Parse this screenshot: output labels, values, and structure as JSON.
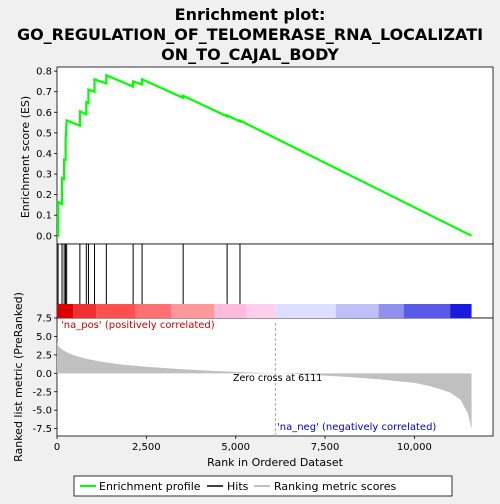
{
  "chart_data": {
    "type": "line",
    "title_line1": "Enrichment plot:",
    "title_line2": "GO_REGULATION_OF_TELOMERASE_RNA_LOCALIZATI",
    "title_line3": "ON_TO_CAJAL_BODY",
    "top_ylabel": "Enrichment score (ES)",
    "bottom_ylabel_line1": "Ranked list metric (PreRanked)",
    "xlabel": "Rank in Ordered Dataset",
    "top_yticks": [
      "0.0",
      "0.1",
      "0.2",
      "0.3",
      "0.4",
      "0.5",
      "0.6",
      "0.7",
      "0.8"
    ],
    "bottom_yticks": [
      "7.5",
      "5.0",
      "2.5",
      "0.0",
      "-2.5",
      "-5.0",
      "-7.5"
    ],
    "xticks": [
      "0",
      "2,500",
      "5,000",
      "7,500",
      "10,000"
    ],
    "xlim": [
      0,
      12200
    ],
    "top_ylim": [
      -0.04,
      0.82
    ],
    "bottom_ylim": [
      -8.5,
      7.5
    ],
    "n_genes": 11600,
    "zero_cross": 6111,
    "zero_cross_label": "Zero cross at 6111",
    "pos_label": "'na_pos' (positively correlated)",
    "neg_label": "'na_neg' (negatively correlated)",
    "hits": [
      30,
      140,
      200,
      240,
      270,
      640,
      820,
      880,
      1050,
      1380,
      2130,
      2380,
      3530,
      4760,
      5120
    ],
    "es_profile": {
      "x": [
        0,
        30,
        30,
        140,
        140,
        200,
        200,
        240,
        240,
        270,
        270,
        640,
        640,
        820,
        820,
        880,
        880,
        1050,
        1050,
        1380,
        1380,
        2130,
        2130,
        2380,
        2380,
        3530,
        3530,
        4760,
        4760,
        5120,
        5120,
        11600
      ],
      "y": [
        0.0,
        0.0,
        0.165,
        0.155,
        0.28,
        0.275,
        0.37,
        0.368,
        0.46,
        0.56,
        0.56,
        0.535,
        0.605,
        0.59,
        0.65,
        0.645,
        0.71,
        0.7,
        0.76,
        0.74,
        0.78,
        0.725,
        0.75,
        0.735,
        0.76,
        0.67,
        0.68,
        0.58,
        0.585,
        0.555,
        0.56,
        0.0
      ]
    },
    "metric_curve": {
      "x": [
        0,
        50,
        150,
        300,
        500,
        800,
        1200,
        1800,
        2500,
        3500,
        4500,
        5500,
        6111,
        7000,
        8000,
        9000,
        10000,
        10500,
        11000,
        11300,
        11500,
        11600
      ],
      "y": [
        4.2,
        3.6,
        3.2,
        2.8,
        2.4,
        2.0,
        1.6,
        1.2,
        0.9,
        0.55,
        0.3,
        0.1,
        0.0,
        -0.2,
        -0.45,
        -0.8,
        -1.3,
        -1.8,
        -2.6,
        -3.6,
        -5.5,
        -7.6
      ]
    },
    "bar_segments": [
      {
        "from": 0,
        "to": 450,
        "color": "#dd0000"
      },
      {
        "from": 450,
        "to": 1100,
        "color": "#f03030"
      },
      {
        "from": 1100,
        "to": 2200,
        "color": "#ff5050"
      },
      {
        "from": 2200,
        "to": 3200,
        "color": "#ff7070"
      },
      {
        "from": 3200,
        "to": 4400,
        "color": "#ff9898"
      },
      {
        "from": 4400,
        "to": 5300,
        "color": "#ffbbdd"
      },
      {
        "from": 5300,
        "to": 6111,
        "color": "#ffd0ee"
      },
      {
        "from": 6111,
        "to": 7800,
        "color": "#ddddff"
      },
      {
        "from": 7800,
        "to": 9000,
        "color": "#c0c0f8"
      },
      {
        "from": 9000,
        "to": 9700,
        "color": "#9090f0"
      },
      {
        "from": 9700,
        "to": 11000,
        "color": "#5a5ae8"
      },
      {
        "from": 11000,
        "to": 11600,
        "color": "#1a1adc"
      }
    ],
    "colors": {
      "es_line": "#00ff00",
      "hit": "#000000",
      "metric_fill": "#c0c0c0",
      "pos_label": "#cc0000",
      "neg_label": "#0000cc",
      "zero_cross_line": "#aaaaaa"
    },
    "legend": {
      "items": [
        "Enrichment profile",
        "Hits",
        "Ranking metric scores"
      ]
    }
  }
}
